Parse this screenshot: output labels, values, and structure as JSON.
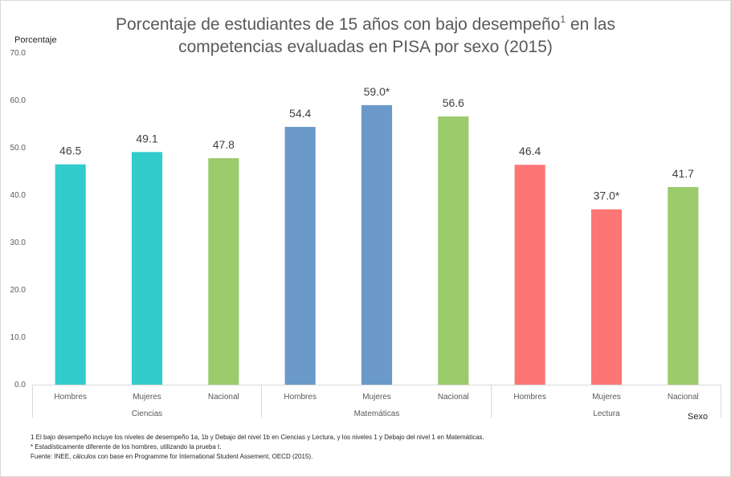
{
  "chart_data": {
    "type": "bar",
    "title_main": "Porcentaje de estudiantes de 15 años con bajo desempeño",
    "title_sup": "1",
    "title_rest": " en las",
    "title_line2": "competencias evaluadas en PISA por sexo (2015)",
    "ylabel": "Porcentaje",
    "xlabel": "Sexo",
    "ylim": [
      0,
      70
    ],
    "yticks": [
      "0.0",
      "10.0",
      "20.0",
      "30.0",
      "40.0",
      "50.0",
      "60.0",
      "70.0"
    ],
    "grid": false,
    "groups": [
      {
        "name": "Ciencias",
        "bars": [
          {
            "category": "Hombres",
            "value": 46.5,
            "label": "46.5",
            "color": "#33cccc"
          },
          {
            "category": "Mujeres",
            "value": 49.1,
            "label": "49.1",
            "color": "#33cccc"
          },
          {
            "category": "Nacional",
            "value": 47.8,
            "label": "47.8",
            "color": "#9bcb6b"
          }
        ]
      },
      {
        "name": "Matemáticas",
        "bars": [
          {
            "category": "Hombres",
            "value": 54.4,
            "label": "54.4",
            "color": "#6b99c9"
          },
          {
            "category": "Mujeres",
            "value": 59.0,
            "label": "59.0*",
            "color": "#6b99c9"
          },
          {
            "category": "Nacional",
            "value": 56.6,
            "label": "56.6",
            "color": "#9bcb6b"
          }
        ]
      },
      {
        "name": "Lectura",
        "bars": [
          {
            "category": "Hombres",
            "value": 46.4,
            "label": "46.4",
            "color": "#fd7575"
          },
          {
            "category": "Mujeres",
            "value": 37.0,
            "label": "37.0*",
            "color": "#fd7575"
          },
          {
            "category": "Nacional",
            "value": 41.7,
            "label": "41.7",
            "color": "#9bcb6b"
          }
        ]
      }
    ]
  },
  "notes": [
    "1 El bajo desempeño incluye los niveles de desempeño 1a, 1b y Debajo del nivel 1b en Ciencias y Lectura, y los niveles 1 y Debajo del nivel 1 en Matemáticas.",
    "* Estadísticamente diferente de los hombres, utilizando la prueba t.",
    "Fuente: INEE, cálculos con base en Programme for International Student Assement, OECD (2015)."
  ]
}
